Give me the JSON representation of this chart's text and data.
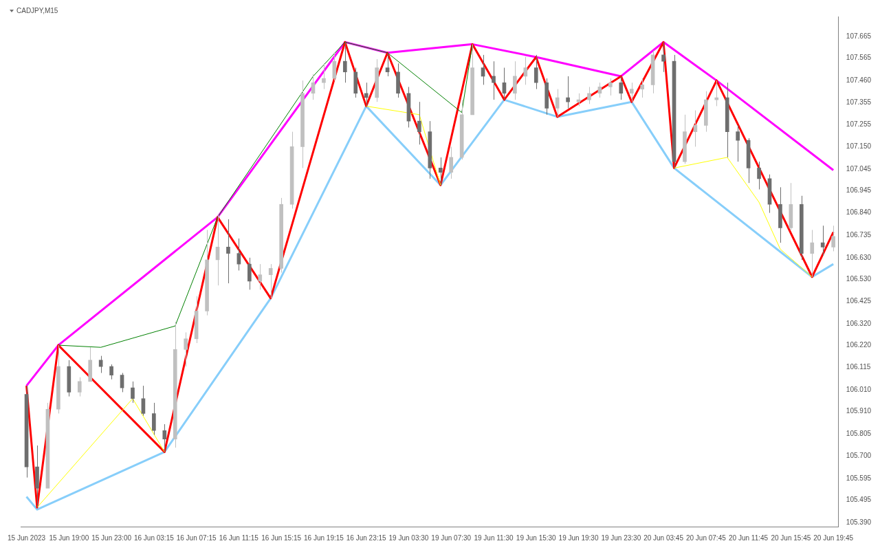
{
  "chart_data": {
    "type": "candlestick",
    "title": "CADJPY,M15",
    "categories": [
      "15 Jun 2023",
      null,
      null,
      null,
      "15 Jun 19:00",
      null,
      null,
      null,
      "15 Jun 23:00",
      null,
      null,
      null,
      "16 Jun 03:15",
      null,
      null,
      null,
      "16 Jun 07:15",
      null,
      null,
      null,
      "16 Jun 11:15",
      null,
      null,
      null,
      "16 Jun 15:15",
      null,
      null,
      null,
      "16 Jun 19:15",
      null,
      null,
      null,
      "16 Jun 23:15",
      null,
      null,
      null,
      "19 Jun 03:30",
      null,
      null,
      null,
      "19 Jun 07:30",
      null,
      null,
      null,
      "19 Jun 11:30",
      null,
      null,
      null,
      "19 Jun 15:30",
      null,
      null,
      null,
      "19 Jun 19:30",
      null,
      null,
      null,
      "19 Jun 23:30",
      null,
      null,
      null,
      "20 Jun 03:45",
      null,
      null,
      null,
      "20 Jun 07:45",
      null,
      null,
      null,
      "20 Jun 11:45",
      null,
      null,
      null,
      "20 Jun 15:45",
      null,
      null,
      null,
      "20 Jun 19:45"
    ],
    "ohlc": [
      [
        105.99,
        106.03,
        105.6,
        105.65
      ],
      [
        105.65,
        105.75,
        105.46,
        105.55
      ],
      [
        105.55,
        105.95,
        105.55,
        105.92
      ],
      [
        105.92,
        106.22,
        105.9,
        106.12
      ],
      [
        106.12,
        106.15,
        105.98,
        106.0
      ],
      [
        106.0,
        106.07,
        105.98,
        106.05
      ],
      [
        106.05,
        106.21,
        106.05,
        106.15
      ],
      [
        106.15,
        106.17,
        106.09,
        106.12
      ],
      [
        106.12,
        106.13,
        106.06,
        106.08
      ],
      [
        106.08,
        106.09,
        106.0,
        106.02
      ],
      [
        106.02,
        106.05,
        105.95,
        105.97
      ],
      [
        105.97,
        106.03,
        105.89,
        105.9
      ],
      [
        105.9,
        105.95,
        105.8,
        105.82
      ],
      [
        105.82,
        105.85,
        105.72,
        105.78
      ],
      [
        105.78,
        106.33,
        105.74,
        106.2
      ],
      [
        106.2,
        106.28,
        106.12,
        106.25
      ],
      [
        106.25,
        106.45,
        106.23,
        106.38
      ],
      [
        106.38,
        106.76,
        106.36,
        106.62
      ],
      [
        106.62,
        106.83,
        106.5,
        106.68
      ],
      [
        106.68,
        106.81,
        106.51,
        106.65
      ],
      [
        106.65,
        106.72,
        106.57,
        106.6
      ],
      [
        106.6,
        106.63,
        106.48,
        106.52
      ],
      [
        106.52,
        106.6,
        106.48,
        106.55
      ],
      [
        106.55,
        106.6,
        106.44,
        106.58
      ],
      [
        106.58,
        106.91,
        106.56,
        106.88
      ],
      [
        106.88,
        107.22,
        106.86,
        107.15
      ],
      [
        107.15,
        107.46,
        107.05,
        107.4
      ],
      [
        107.4,
        107.49,
        107.37,
        107.45
      ],
      [
        107.45,
        107.54,
        107.42,
        107.47
      ],
      [
        107.47,
        107.59,
        107.46,
        107.55
      ],
      [
        107.55,
        107.64,
        107.45,
        107.5
      ],
      [
        107.5,
        107.52,
        107.38,
        107.4
      ],
      [
        107.4,
        107.45,
        107.34,
        107.38
      ],
      [
        107.38,
        107.56,
        107.36,
        107.52
      ],
      [
        107.52,
        107.59,
        107.48,
        107.5
      ],
      [
        107.5,
        107.54,
        107.38,
        107.4
      ],
      [
        107.4,
        107.43,
        107.24,
        107.27
      ],
      [
        107.27,
        107.36,
        107.16,
        107.22
      ],
      [
        107.22,
        107.27,
        107.0,
        107.05
      ],
      [
        107.05,
        107.1,
        106.97,
        107.03
      ],
      [
        107.03,
        107.15,
        107.0,
        107.1
      ],
      [
        107.1,
        107.37,
        107.09,
        107.3
      ],
      [
        107.3,
        107.63,
        107.3,
        107.52
      ],
      [
        107.52,
        107.58,
        107.44,
        107.48
      ],
      [
        107.48,
        107.55,
        107.37,
        107.45
      ],
      [
        107.45,
        107.52,
        107.37,
        107.4
      ],
      [
        107.4,
        107.55,
        107.37,
        107.48
      ],
      [
        107.48,
        107.57,
        107.44,
        107.52
      ],
      [
        107.52,
        107.58,
        107.42,
        107.45
      ],
      [
        107.45,
        107.47,
        107.3,
        107.33
      ],
      [
        107.33,
        107.42,
        107.29,
        107.38
      ],
      [
        107.38,
        107.48,
        107.33,
        107.36
      ],
      [
        107.36,
        107.4,
        107.34,
        107.37
      ],
      [
        107.37,
        107.43,
        107.35,
        107.4
      ],
      [
        107.4,
        107.45,
        107.38,
        107.43
      ],
      [
        107.43,
        107.47,
        107.39,
        107.45
      ],
      [
        107.45,
        107.48,
        107.37,
        107.4
      ],
      [
        107.4,
        107.45,
        107.36,
        107.42
      ],
      [
        107.42,
        107.47,
        107.38,
        107.44
      ],
      [
        107.44,
        107.6,
        107.4,
        107.58
      ],
      [
        107.58,
        107.64,
        107.5,
        107.55
      ],
      [
        107.55,
        107.58,
        107.05,
        107.08
      ],
      [
        107.08,
        107.3,
        107.07,
        107.22
      ],
      [
        107.22,
        107.32,
        107.15,
        107.25
      ],
      [
        107.25,
        107.41,
        107.22,
        107.37
      ],
      [
        107.37,
        107.46,
        107.34,
        107.38
      ],
      [
        107.38,
        107.45,
        107.1,
        107.22
      ],
      [
        107.22,
        107.25,
        107.08,
        107.18
      ],
      [
        107.18,
        107.19,
        106.98,
        107.05
      ],
      [
        107.05,
        107.08,
        106.95,
        107.0
      ],
      [
        107.0,
        107.02,
        106.84,
        106.88
      ],
      [
        106.88,
        106.96,
        106.7,
        106.77
      ],
      [
        106.77,
        106.98,
        106.76,
        106.88
      ],
      [
        106.88,
        106.92,
        106.62,
        106.65
      ],
      [
        106.65,
        106.76,
        106.54,
        106.7
      ],
      [
        106.7,
        106.78,
        106.64,
        106.68
      ],
      [
        106.68,
        106.78,
        106.66,
        106.73
      ]
    ],
    "colors": [
      "#6e6e6e",
      "#6e6e6e",
      "#c0c0c0",
      "#c0c0c0",
      "#6e6e6e",
      "#c0c0c0",
      "#c0c0c0",
      "#6e6e6e",
      "#6e6e6e",
      "#6e6e6e",
      "#6e6e6e",
      "#6e6e6e",
      "#6e6e6e",
      "#6e6e6e",
      "#c0c0c0",
      "#c0c0c0",
      "#c0c0c0",
      "#c0c0c0",
      "#c0c0c0",
      "#6e6e6e",
      "#6e6e6e",
      "#6e6e6e",
      "#c0c0c0",
      "#c0c0c0",
      "#c0c0c0",
      "#c0c0c0",
      "#c0c0c0",
      "#c0c0c0",
      "#c0c0c0",
      "#c0c0c0",
      "#6e6e6e",
      "#6e6e6e",
      "#6e6e6e",
      "#c0c0c0",
      "#6e6e6e",
      "#6e6e6e",
      "#6e6e6e",
      "#6e6e6e",
      "#6e6e6e",
      "#6e6e6e",
      "#c0c0c0",
      "#c0c0c0",
      "#c0c0c0",
      "#6e6e6e",
      "#6e6e6e",
      "#6e6e6e",
      "#c0c0c0",
      "#c0c0c0",
      "#6e6e6e",
      "#6e6e6e",
      "#c0c0c0",
      "#6e6e6e",
      "#c0c0c0",
      "#c0c0c0",
      "#c0c0c0",
      "#c0c0c0",
      "#6e6e6e",
      "#c0c0c0",
      "#c0c0c0",
      "#c0c0c0",
      "#6e6e6e",
      "#6e6e6e",
      "#c0c0c0",
      "#c0c0c0",
      "#c0c0c0",
      "#c0c0c0",
      "#6e6e6e",
      "#6e6e6e",
      "#6e6e6e",
      "#6e6e6e",
      "#6e6e6e",
      "#6e6e6e",
      "#c0c0c0",
      "#6e6e6e",
      "#c0c0c0",
      "#6e6e6e",
      "#c0c0c0"
    ],
    "series": [
      {
        "type": "line",
        "color": "#ff00ff",
        "values": [
          106.03,
          null,
          null,
          106.22,
          null,
          null,
          null,
          null,
          null,
          null,
          null,
          null,
          null,
          null,
          null,
          null,
          null,
          null,
          106.82,
          null,
          null,
          null,
          null,
          null,
          null,
          null,
          null,
          null,
          null,
          null,
          107.64,
          null,
          null,
          null,
          107.59,
          null,
          null,
          null,
          null,
          null,
          null,
          null,
          107.63,
          null,
          null,
          null,
          null,
          null,
          107.57,
          null,
          null,
          null,
          null,
          null,
          null,
          null,
          107.48,
          null,
          null,
          null,
          107.64,
          null,
          null,
          null,
          null,
          107.46,
          null,
          null,
          null,
          null,
          null,
          null,
          null,
          null,
          null,
          null,
          107.04
        ]
      },
      {
        "type": "line",
        "color": "#87cefa",
        "values": [
          105.51,
          105.45,
          null,
          null,
          null,
          null,
          null,
          null,
          null,
          null,
          null,
          null,
          null,
          105.72,
          null,
          null,
          null,
          null,
          null,
          null,
          null,
          null,
          null,
          106.44,
          null,
          null,
          null,
          null,
          null,
          null,
          null,
          null,
          107.34,
          null,
          null,
          null,
          null,
          null,
          null,
          106.97,
          null,
          null,
          null,
          null,
          null,
          107.37,
          null,
          null,
          null,
          null,
          107.29,
          null,
          null,
          null,
          null,
          null,
          null,
          107.36,
          null,
          null,
          null,
          107.05,
          null,
          null,
          null,
          null,
          null,
          null,
          null,
          null,
          null,
          null,
          null,
          null,
          106.54,
          null,
          106.6
        ]
      },
      {
        "type": "line",
        "color": "#ff0000",
        "values": [
          106.03,
          105.46,
          null,
          106.22,
          null,
          null,
          null,
          null,
          null,
          null,
          null,
          null,
          null,
          105.72,
          null,
          null,
          null,
          null,
          106.82,
          null,
          null,
          null,
          null,
          106.44,
          null,
          null,
          null,
          null,
          null,
          null,
          107.64,
          null,
          107.34,
          null,
          107.59,
          null,
          null,
          null,
          null,
          106.97,
          null,
          null,
          107.63,
          null,
          null,
          107.37,
          null,
          null,
          107.57,
          null,
          107.29,
          null,
          null,
          null,
          null,
          null,
          107.48,
          107.36,
          null,
          null,
          107.64,
          107.05,
          null,
          null,
          null,
          107.46,
          null,
          null,
          null,
          null,
          null,
          null,
          null,
          null,
          106.54,
          null,
          106.75
        ]
      },
      {
        "type": "line",
        "color": "#008000",
        "values": [
          null,
          null,
          null,
          106.22,
          null,
          null,
          null,
          106.21,
          null,
          null,
          null,
          null,
          null,
          null,
          106.31,
          null,
          null,
          null,
          106.82,
          null,
          null,
          null,
          null,
          null,
          null,
          null,
          null,
          107.48,
          null,
          null,
          107.64,
          null,
          null,
          null,
          107.59,
          null,
          null,
          null,
          null,
          null,
          null,
          107.31,
          107.63,
          null,
          null,
          null,
          null,
          null,
          null,
          null,
          null,
          null,
          null,
          null,
          null,
          null,
          null,
          null,
          null,
          null,
          null,
          null,
          null,
          null,
          null,
          null,
          null,
          null,
          null,
          null,
          null,
          null,
          null,
          null,
          null,
          null,
          null
        ]
      },
      {
        "type": "line",
        "color": "#ffff00",
        "values": [
          null,
          105.46,
          null,
          null,
          null,
          null,
          null,
          null,
          null,
          null,
          105.97,
          null,
          null,
          105.72,
          null,
          null,
          null,
          null,
          null,
          null,
          null,
          null,
          null,
          null,
          null,
          null,
          null,
          null,
          null,
          null,
          null,
          null,
          null,
          null,
          null,
          null,
          null,
          null,
          null,
          null,
          null,
          null,
          null,
          null,
          null,
          null,
          null,
          null,
          null,
          null,
          null,
          null,
          null,
          null,
          null,
          null,
          null,
          null,
          null,
          null,
          null,
          null,
          null,
          null,
          null,
          null,
          null,
          null,
          null,
          null,
          null,
          null,
          null,
          null,
          null,
          null,
          null
        ]
      },
      {
        "type": "line",
        "color": "#ffff00",
        "values": [
          null,
          null,
          null,
          null,
          null,
          null,
          null,
          null,
          null,
          null,
          null,
          null,
          null,
          null,
          null,
          null,
          null,
          null,
          null,
          null,
          null,
          null,
          null,
          null,
          null,
          null,
          null,
          null,
          null,
          null,
          null,
          null,
          107.34,
          null,
          null,
          null,
          null,
          107.3,
          null,
          106.97,
          null,
          null,
          null,
          null,
          null,
          null,
          null,
          null,
          null,
          null,
          null,
          null,
          null,
          null,
          null,
          null,
          null,
          null,
          null,
          null,
          null,
          null,
          null,
          null,
          null,
          null,
          null,
          null,
          null,
          null,
          null,
          null,
          null,
          null,
          null,
          null,
          null
        ]
      },
      {
        "type": "line",
        "color": "#ffff00",
        "values": [
          null,
          null,
          null,
          null,
          null,
          null,
          null,
          null,
          null,
          null,
          null,
          null,
          null,
          null,
          null,
          null,
          null,
          null,
          null,
          null,
          null,
          null,
          null,
          null,
          null,
          null,
          null,
          null,
          null,
          null,
          null,
          null,
          null,
          null,
          null,
          null,
          null,
          null,
          null,
          null,
          null,
          null,
          null,
          null,
          null,
          null,
          null,
          null,
          null,
          null,
          null,
          null,
          null,
          null,
          null,
          null,
          null,
          null,
          null,
          null,
          null,
          107.05,
          null,
          null,
          null,
          null,
          107.1,
          null,
          null,
          106.89,
          null,
          106.67,
          null,
          null,
          106.54,
          null,
          null
        ]
      }
    ],
    "ylim": [
      105.37,
      107.76
    ],
    "yticks": [
      {
        "value": 105.39,
        "label": "105.390"
      },
      {
        "value": 105.495,
        "label": "105.495"
      },
      {
        "value": 105.595,
        "label": "105.595"
      },
      {
        "value": 105.7,
        "label": "105.700"
      },
      {
        "value": 105.805,
        "label": "105.805"
      },
      {
        "value": 105.91,
        "label": "105.910"
      },
      {
        "value": 106.01,
        "label": "106.010"
      },
      {
        "value": 106.115,
        "label": "106.115"
      },
      {
        "value": 106.22,
        "label": "106.220"
      },
      {
        "value": 106.32,
        "label": "106.320"
      },
      {
        "value": 106.425,
        "label": "106.425"
      },
      {
        "value": 106.53,
        "label": "106.530"
      },
      {
        "value": 106.63,
        "label": "106.630"
      },
      {
        "value": 106.735,
        "label": "106.735"
      },
      {
        "value": 106.84,
        "label": "106.840"
      },
      {
        "value": 106.945,
        "label": "106.945"
      },
      {
        "value": 107.045,
        "label": "107.045"
      },
      {
        "value": 107.15,
        "label": "107.150"
      },
      {
        "value": 107.255,
        "label": "107.255"
      },
      {
        "value": 107.355,
        "label": "107.355"
      },
      {
        "value": 107.46,
        "label": "107.460"
      },
      {
        "value": 107.565,
        "label": "107.565"
      },
      {
        "value": 107.665,
        "label": "107.665"
      }
    ]
  }
}
